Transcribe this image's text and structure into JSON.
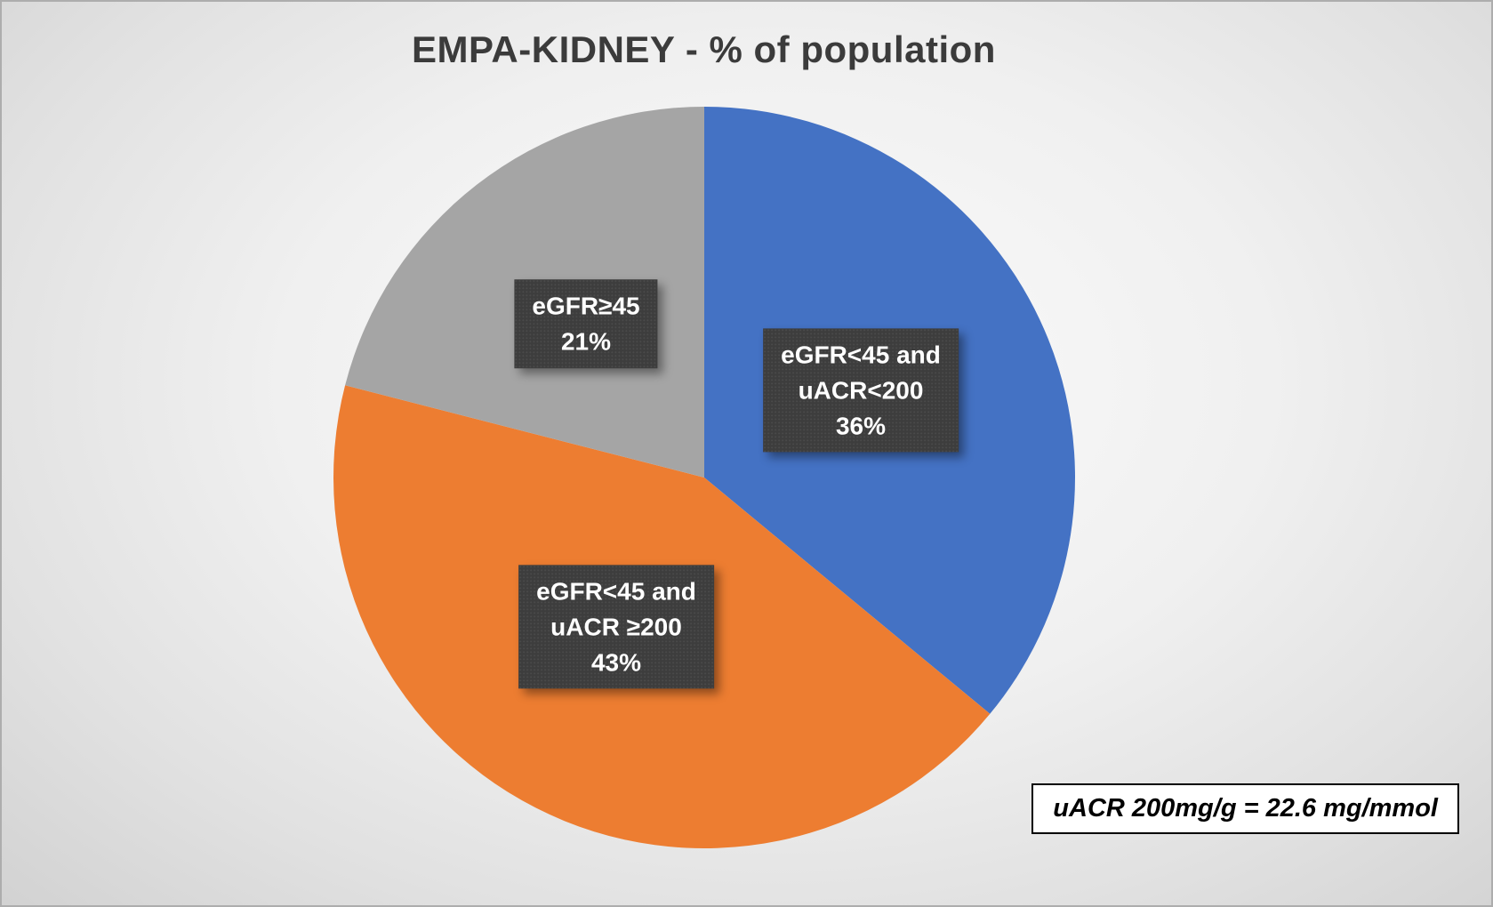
{
  "chart_data": {
    "type": "pie",
    "title": "EMPA-KIDNEY - % of population",
    "start_angle_deg": 0,
    "direction": "clockwise",
    "legend_position": "none",
    "slices": [
      {
        "label": "eGFR<45 and uACR<200",
        "value": 36,
        "color": "#4472C4",
        "label_lines": [
          "eGFR<45 and",
          "uACR<200",
          "36%"
        ]
      },
      {
        "label": "eGFR<45 and uACR ≥200",
        "value": 43,
        "color": "#ED7D31",
        "label_lines": [
          "eGFR<45 and",
          "uACR ≥200",
          "43%"
        ]
      },
      {
        "label": "eGFR≥45",
        "value": 21,
        "color": "#A5A5A5",
        "label_lines": [
          "eGFR≥45",
          "21%"
        ]
      }
    ],
    "label_style": {
      "background": "#3d3d3d",
      "text_color": "#ffffff"
    }
  },
  "annotation": {
    "text": "uACR 200mg/g = 22.6 mg/mmol"
  }
}
